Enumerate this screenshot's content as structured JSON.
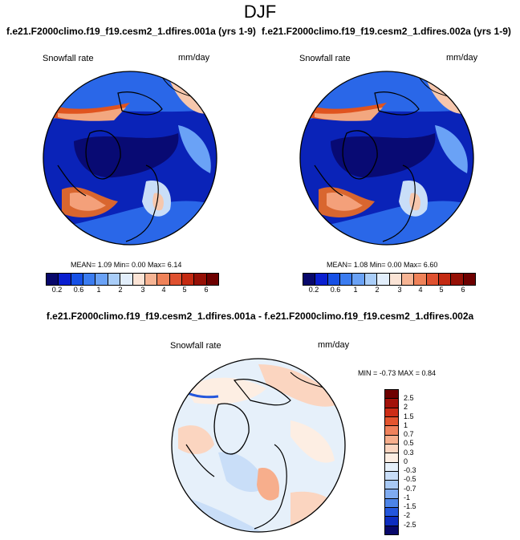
{
  "season": "DJF",
  "panels": [
    {
      "title": "f.e21.F2000climo.f19_f19.cesm2_1.dfires.001a (yrs 1-9)",
      "variable": "Snowfall rate",
      "units": "mm/day",
      "stats": "MEAN=  1.09  Min=  0.00  Max=  6.14"
    },
    {
      "title": "f.e21.F2000climo.f19_f19.cesm2_1.dfires.002a (yrs 1-9)",
      "variable": "Snowfall rate",
      "units": "mm/day",
      "stats": "MEAN=  1.08  Min=  0.00  Max=  6.60"
    }
  ],
  "difference": {
    "title": "f.e21.F2000climo.f19_f19.cesm2_1.dfires.001a - f.e21.F2000climo.f19_f19.cesm2_1.dfires.002a",
    "variable": "Snowfall rate",
    "units": "mm/day",
    "stats": "MIN =  -0.73 MAX =   0.84"
  },
  "colorbar_main": {
    "colors": [
      "#08086b",
      "#0a1fd0",
      "#1650e6",
      "#3b7cf0",
      "#6aa2f6",
      "#a9cdf8",
      "#e2eefb",
      "#fbe4d6",
      "#f6b494",
      "#ef8259",
      "#df5130",
      "#c42a12",
      "#961006",
      "#6e0000"
    ],
    "ticks": [
      "0.2",
      "0.6",
      "1",
      "2",
      "3",
      "4",
      "5",
      "6"
    ]
  },
  "colorbar_diff": {
    "colors": [
      "#6e0000",
      "#a3120a",
      "#cd2d16",
      "#e4552f",
      "#f0825c",
      "#f7ae8c",
      "#fbd5c0",
      "#fdeee3",
      "#e6f0fa",
      "#c9def8",
      "#a8c9f5",
      "#7fabf0",
      "#4c84e8",
      "#2356dc",
      "#0d2dc0",
      "#08086b"
    ],
    "ticks": [
      "2.5",
      "2",
      "1.5",
      "1",
      "0.7",
      "0.5",
      "0.3",
      "0",
      "-0.3",
      "-0.5",
      "-0.7",
      "-1",
      "-1.5",
      "-2",
      "-2.5"
    ]
  }
}
